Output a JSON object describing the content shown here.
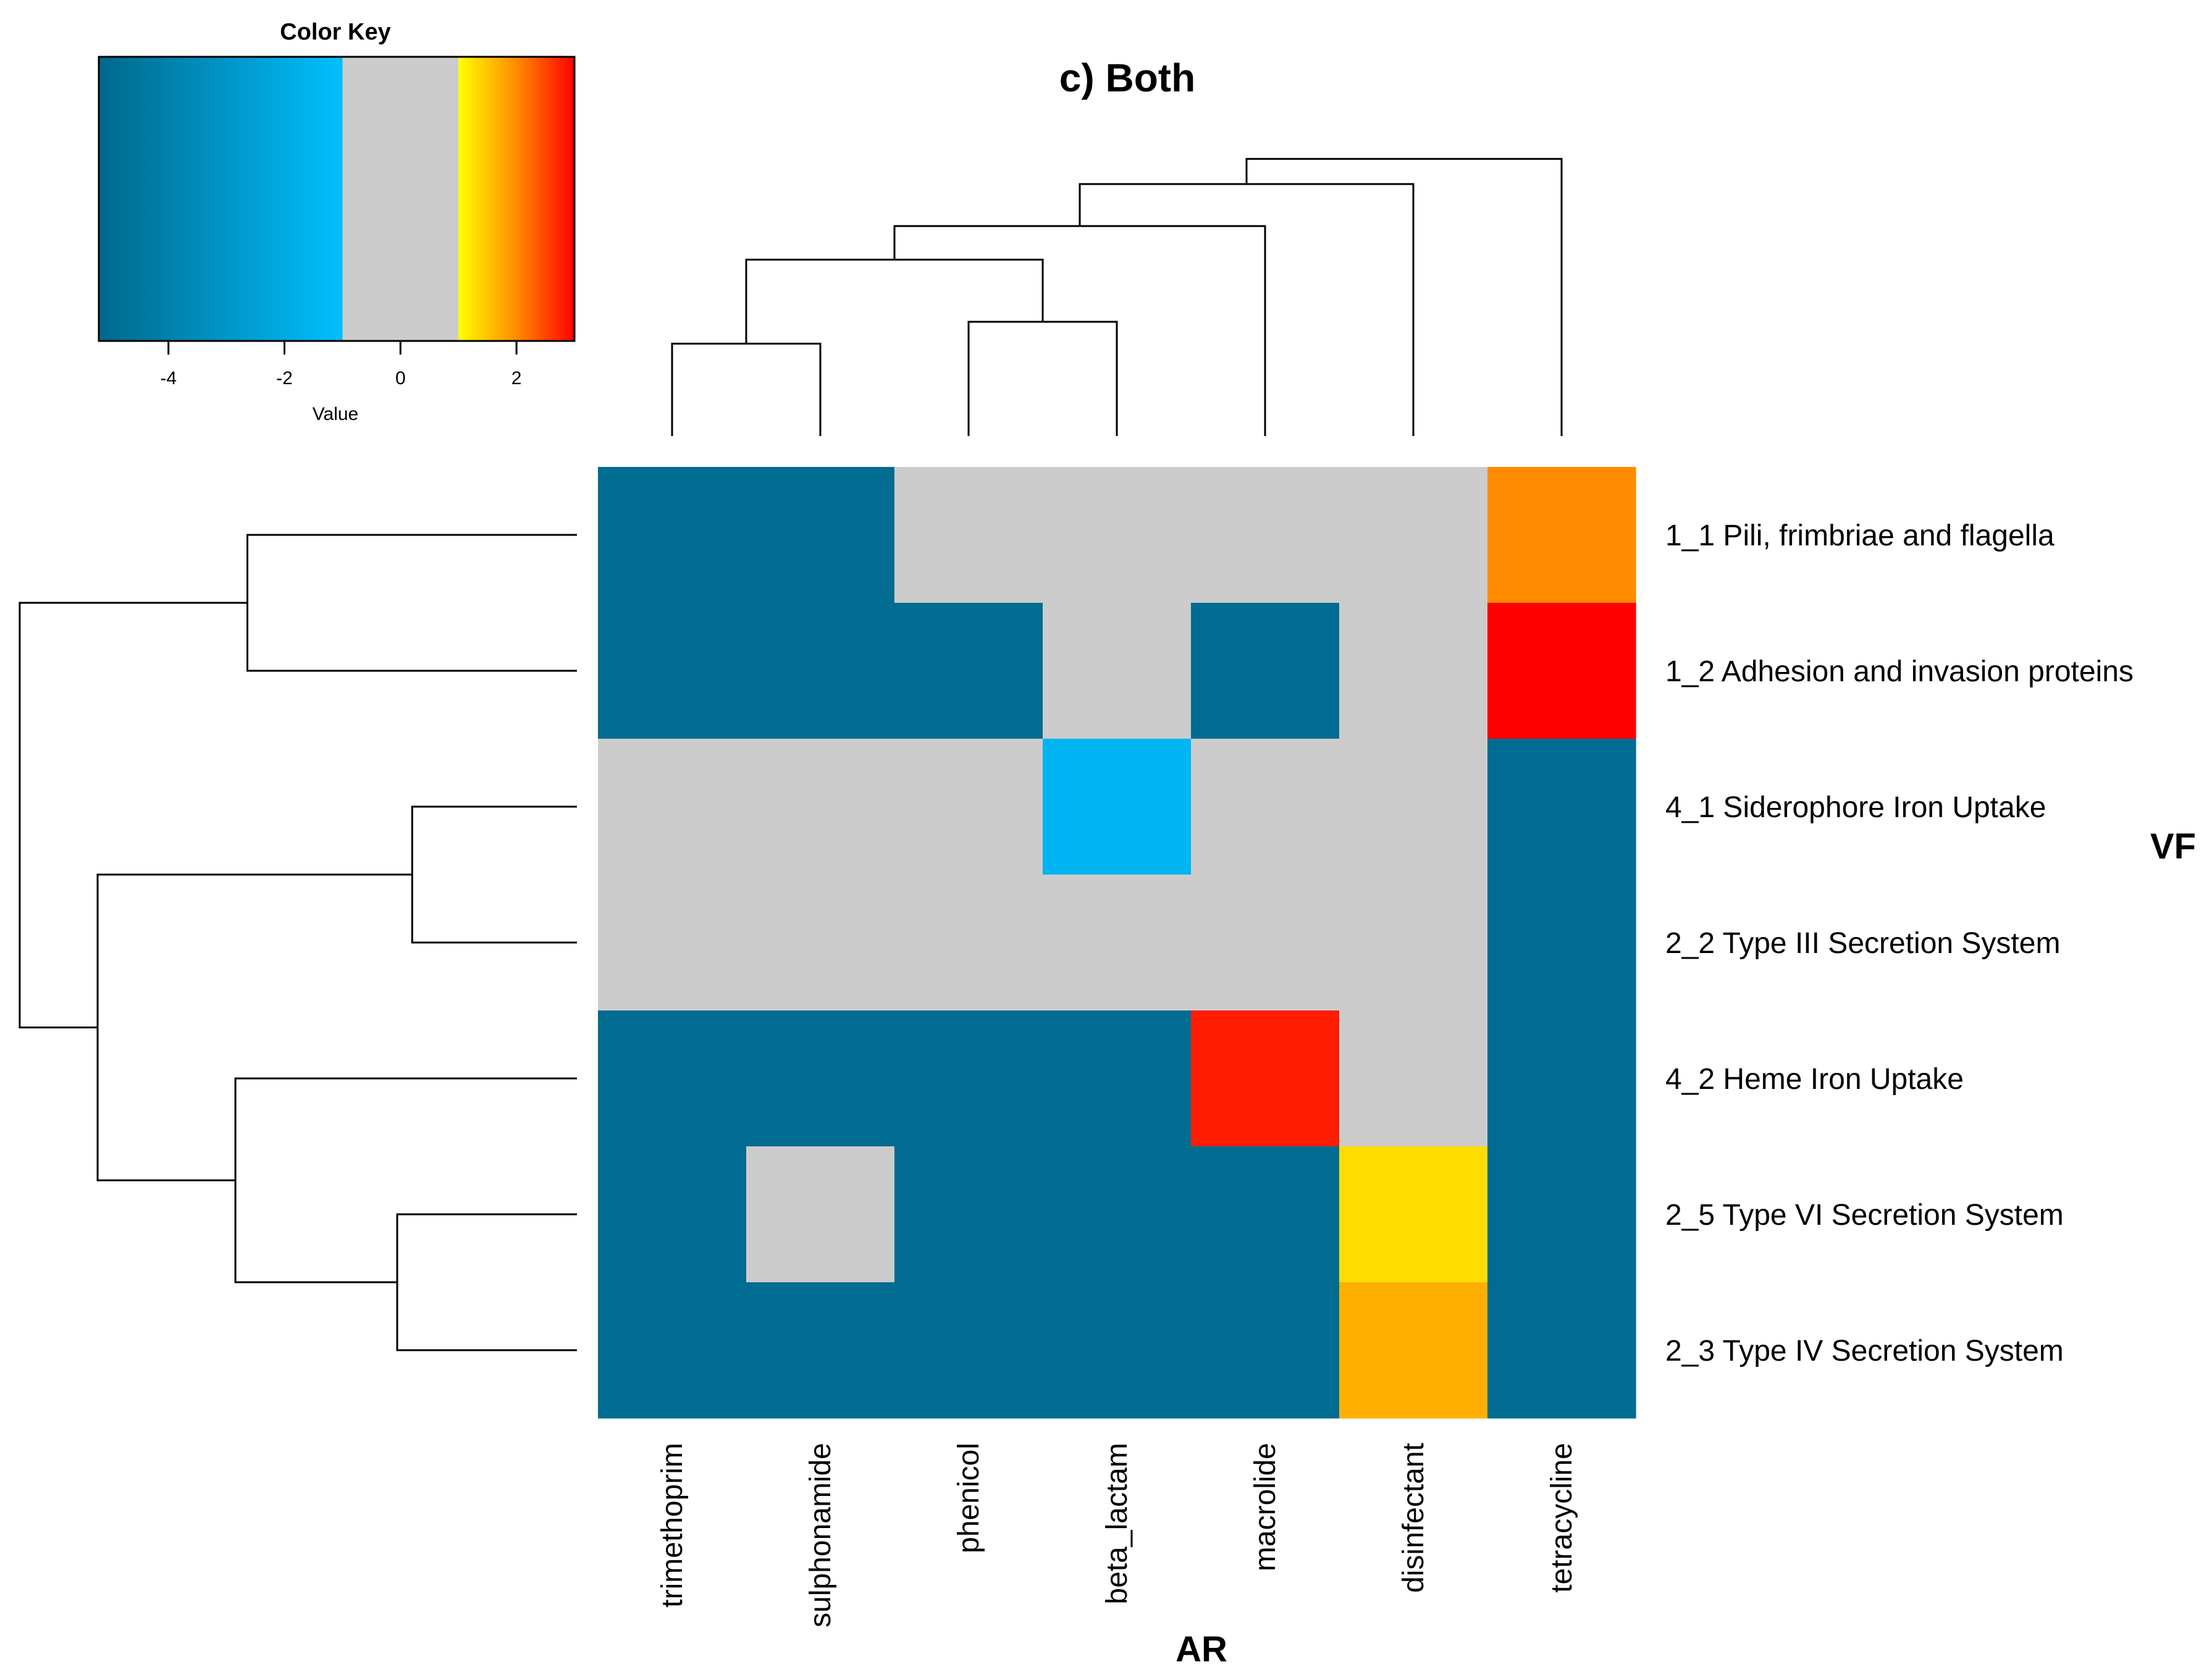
{
  "chart_data": {
    "type": "heatmap",
    "title": "c) Both",
    "xlabel": "AR",
    "ylabel": "VF",
    "columns": [
      "trimethoprim",
      "sulphonamide",
      "phenicol",
      "beta_lactam",
      "macrolide",
      "disinfectant",
      "tetracycline"
    ],
    "rows": [
      "1_1 Pili, frimbriae and flagella",
      "1_2 Adhesion and invasion proteins",
      "4_1 Siderophore Iron Uptake",
      "2_2 Type III Secretion System",
      "4_2 Heme Iron Uptake",
      "2_5 Type VI Secretion System",
      "2_3 Type IV Secretion System"
    ],
    "values": [
      [
        -5,
        -5,
        0,
        0,
        0,
        0,
        2
      ],
      [
        -5,
        -5,
        -5,
        0,
        -5,
        0,
        3
      ],
      [
        0,
        0,
        1,
        -1.5,
        0,
        -1,
        -5
      ],
      [
        0,
        0,
        -1,
        0,
        0,
        0,
        -5
      ],
      [
        -5,
        -5,
        -5,
        -5,
        2.8,
        0,
        -5
      ],
      [
        -5,
        0,
        -5,
        -5,
        -5,
        1.3,
        -5
      ],
      [
        -5,
        -5,
        -5,
        -5,
        -5,
        1.7,
        -5
      ]
    ],
    "color_key": {
      "title": "Color Key",
      "xlabel": "Value",
      "range": [
        -5.2,
        3
      ],
      "ticks": [
        -4,
        -2,
        0,
        2
      ],
      "neutral_range": [
        -1,
        1
      ],
      "stops": [
        {
          "value": -5.2,
          "color": "#00688B"
        },
        {
          "value": -1,
          "color": "#00BFFF"
        },
        {
          "value": -1,
          "color": "#CCCCCC"
        },
        {
          "value": 1,
          "color": "#CCCCCC"
        },
        {
          "value": 1,
          "color": "#FFFF00"
        },
        {
          "value": 2,
          "color": "#FF8C00"
        },
        {
          "value": 3,
          "color": "#FF0000"
        }
      ]
    },
    "column_dendrogram": [
      {
        "a": 0,
        "b": 1,
        "height": 0.55
      },
      {
        "a": 2,
        "b": 3,
        "height": 0.68
      },
      {
        "a": 7,
        "b": 8,
        "height": 1.05
      },
      {
        "a": 9,
        "b": 4,
        "height": 1.25
      },
      {
        "a": 10,
        "b": 5,
        "height": 1.5
      },
      {
        "a": 11,
        "b": 6,
        "height": 1.65
      }
    ],
    "row_dendrogram": [
      {
        "a": 0,
        "b": 1,
        "height": 0.55
      },
      {
        "a": 2,
        "b": 3,
        "height": 0.275
      },
      {
        "a": 5,
        "b": 6,
        "height": 0.3
      },
      {
        "a": 4,
        "b": 9,
        "height": 0.57
      },
      {
        "a": 8,
        "b": 10,
        "height": 0.8
      },
      {
        "a": 7,
        "b": 11,
        "height": 0.93
      }
    ]
  }
}
